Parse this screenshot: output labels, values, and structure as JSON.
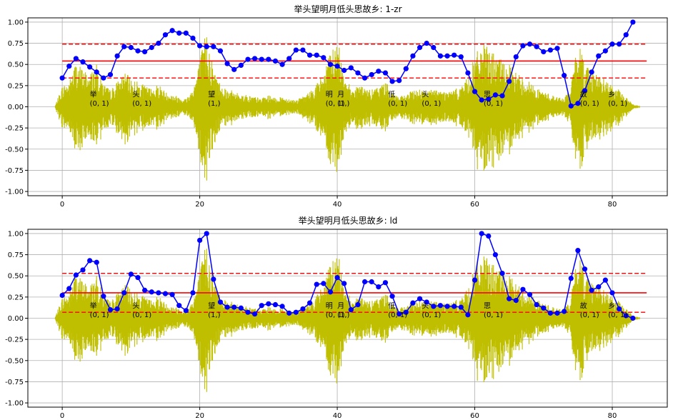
{
  "chart_data": [
    {
      "type": "line",
      "title": "举头望明月低头思故乡: 1-zr",
      "xlim": [
        -5,
        88
      ],
      "ylim": [
        -1.05,
        1.05
      ],
      "xticks": [
        0,
        20,
        40,
        60,
        80
      ],
      "yticks": [
        -1.0,
        -0.75,
        -0.5,
        -0.25,
        0.0,
        0.25,
        0.5,
        0.75,
        1.0
      ],
      "grid": true,
      "colors": {
        "waveform": "#bfbf00",
        "series": "#0000ff",
        "mean": "#ff0000",
        "band": "#ff0000"
      },
      "series": [
        {
          "style": "line-markers",
          "x": [
            0,
            1,
            2,
            3,
            4,
            5,
            6,
            7,
            8,
            9,
            10,
            11,
            12,
            13,
            14,
            15,
            16,
            17,
            18,
            19,
            20,
            21,
            22,
            23,
            24,
            25,
            26,
            27,
            28,
            29,
            30,
            31,
            32,
            33,
            34,
            35,
            36,
            37,
            38,
            39,
            40,
            41,
            42,
            43,
            44,
            45,
            46,
            47,
            48,
            49,
            50,
            51,
            52,
            53,
            54,
            55,
            56,
            57,
            58,
            59,
            60,
            61,
            62,
            63,
            64,
            65,
            66,
            67,
            68,
            69,
            70,
            71,
            72,
            73,
            74,
            75,
            76,
            77,
            78,
            79,
            80,
            81,
            82,
            83
          ],
          "y": [
            0.34,
            0.48,
            0.57,
            0.53,
            0.47,
            0.41,
            0.34,
            0.38,
            0.6,
            0.71,
            0.7,
            0.66,
            0.65,
            0.7,
            0.75,
            0.85,
            0.9,
            0.87,
            0.87,
            0.81,
            0.72,
            0.71,
            0.71,
            0.66,
            0.51,
            0.44,
            0.49,
            0.56,
            0.57,
            0.56,
            0.56,
            0.54,
            0.5,
            0.57,
            0.67,
            0.67,
            0.61,
            0.61,
            0.58,
            0.5,
            0.48,
            0.43,
            0.46,
            0.4,
            0.34,
            0.38,
            0.42,
            0.4,
            0.3,
            0.31,
            0.45,
            0.6,
            0.7,
            0.75,
            0.7,
            0.6,
            0.6,
            0.61,
            0.59,
            0.4,
            0.18,
            0.08,
            0.09,
            0.14,
            0.13,
            0.3,
            0.59,
            0.72,
            0.74,
            0.71,
            0.65,
            0.67,
            0.69,
            0.37,
            0.01,
            0.04,
            0.19,
            0.41,
            0.6,
            0.66,
            0.74,
            0.74,
            0.85,
            1.0
          ]
        },
        {
          "style": "solid",
          "y": 0.54
        },
        {
          "style": "dashed",
          "y": 0.74
        },
        {
          "style": "dashed",
          "y": 0.34
        }
      ],
      "annotations": [
        {
          "char": "举",
          "label": "(0, 1)",
          "x": 4.0
        },
        {
          "char": "头",
          "label": "(0, 1)",
          "x": 10.2
        },
        {
          "char": "望",
          "label": "(1,)",
          "x": 21.2
        },
        {
          "char": "明",
          "label": "(0, 1)",
          "x": 38.3
        },
        {
          "char": "月",
          "label": "(1,)",
          "x": 40.0
        },
        {
          "char": "低",
          "label": "(0, 1)",
          "x": 47.4
        },
        {
          "char": "头",
          "label": "(0, 1)",
          "x": 52.3
        },
        {
          "char": "思",
          "label": "(0, 1)",
          "x": 61.3
        },
        {
          "char": "故",
          "label": "(0, 1)",
          "x": 75.3
        },
        {
          "char": "乡",
          "label": "(0, 1)",
          "x": 79.4
        }
      ]
    },
    {
      "type": "line",
      "title": "举头望明月低头思故乡: ld",
      "xlim": [
        -5,
        88
      ],
      "ylim": [
        -1.05,
        1.05
      ],
      "xticks": [
        0,
        20,
        40,
        60,
        80
      ],
      "yticks": [
        -1.0,
        -0.75,
        -0.5,
        -0.25,
        0.0,
        0.25,
        0.5,
        0.75,
        1.0
      ],
      "grid": true,
      "colors": {
        "waveform": "#bfbf00",
        "series": "#0000ff",
        "mean": "#ff0000",
        "band": "#ff0000"
      },
      "series": [
        {
          "style": "line-markers",
          "x": [
            0,
            1,
            2,
            3,
            4,
            5,
            6,
            7,
            8,
            9,
            10,
            11,
            12,
            13,
            14,
            15,
            16,
            17,
            18,
            19,
            20,
            21,
            22,
            23,
            24,
            25,
            26,
            27,
            28,
            29,
            30,
            31,
            32,
            33,
            34,
            35,
            36,
            37,
            38,
            39,
            40,
            41,
            42,
            43,
            44,
            45,
            46,
            47,
            48,
            49,
            50,
            51,
            52,
            53,
            54,
            55,
            56,
            57,
            58,
            59,
            60,
            61,
            62,
            63,
            64,
            65,
            66,
            67,
            68,
            69,
            70,
            71,
            72,
            73,
            74,
            75,
            76,
            77,
            78,
            79,
            80,
            81,
            82,
            83
          ],
          "y": [
            0.27,
            0.35,
            0.51,
            0.57,
            0.68,
            0.66,
            0.26,
            0.1,
            0.11,
            0.3,
            0.52,
            0.48,
            0.33,
            0.31,
            0.3,
            0.29,
            0.28,
            0.15,
            0.09,
            0.3,
            0.92,
            1.0,
            0.46,
            0.19,
            0.13,
            0.13,
            0.12,
            0.07,
            0.05,
            0.15,
            0.17,
            0.16,
            0.14,
            0.06,
            0.07,
            0.11,
            0.18,
            0.4,
            0.41,
            0.31,
            0.48,
            0.41,
            0.1,
            0.16,
            0.43,
            0.43,
            0.37,
            0.42,
            0.26,
            0.05,
            0.07,
            0.18,
            0.23,
            0.19,
            0.14,
            0.15,
            0.14,
            0.14,
            0.13,
            0.04,
            0.45,
            1.0,
            0.97,
            0.75,
            0.53,
            0.23,
            0.21,
            0.34,
            0.28,
            0.16,
            0.12,
            0.06,
            0.06,
            0.08,
            0.47,
            0.8,
            0.58,
            0.33,
            0.37,
            0.45,
            0.3,
            0.11,
            0.03,
            0.0
          ]
        },
        {
          "style": "solid",
          "y": 0.3
        },
        {
          "style": "dashed",
          "y": 0.53
        },
        {
          "style": "dashed",
          "y": 0.07
        }
      ],
      "annotations": [
        {
          "char": "举",
          "label": "(0, 1)",
          "x": 4.0
        },
        {
          "char": "头",
          "label": "(0, 1)",
          "x": 10.2
        },
        {
          "char": "望",
          "label": "(1,)",
          "x": 21.2
        },
        {
          "char": "明",
          "label": "(0, 1)",
          "x": 38.3
        },
        {
          "char": "月",
          "label": "(1,)",
          "x": 40.0
        },
        {
          "char": "低",
          "label": "(0, 1)",
          "x": 47.4
        },
        {
          "char": "头",
          "label": "(0, 1)",
          "x": 52.3
        },
        {
          "char": "思",
          "label": "(0, 1)",
          "x": 61.3
        },
        {
          "char": "故",
          "label": "(0, 1)",
          "x": 75.3
        },
        {
          "char": "乡",
          "label": "(0, 1)",
          "x": 79.4
        }
      ]
    }
  ]
}
